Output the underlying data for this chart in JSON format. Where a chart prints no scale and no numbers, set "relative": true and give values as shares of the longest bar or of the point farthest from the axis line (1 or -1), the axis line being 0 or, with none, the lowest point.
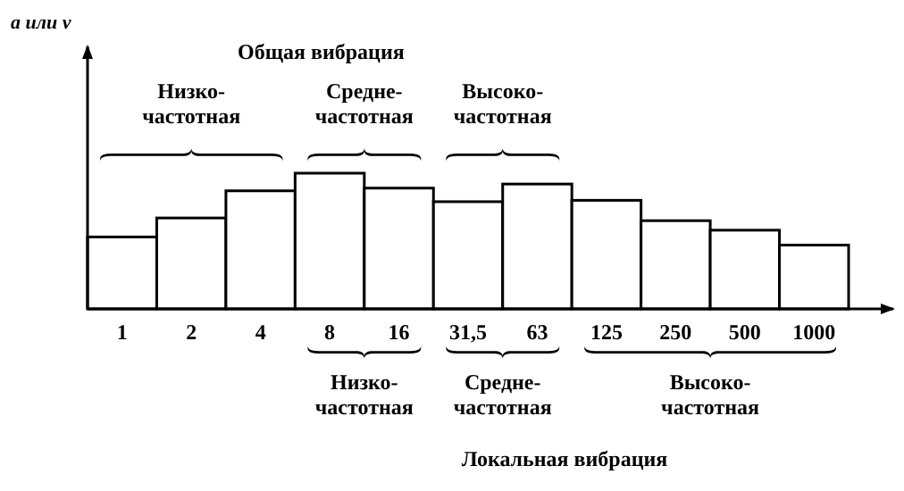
{
  "chart_data": {
    "type": "bar",
    "title": "Общая вибрация",
    "xlabel": "Локальная вибрация",
    "categories": [
      "1",
      "2",
      "4",
      "8",
      "16",
      "31,5",
      "63",
      "125",
      "250",
      "500",
      "1000"
    ],
    "values": [
      0.53,
      0.67,
      0.87,
      1,
      0.89,
      0.79,
      0.92,
      0.8,
      0.65,
      0.58,
      0.47
    ],
    "relative": true,
    "color": "#ffffff",
    "annotations": [
      "Низко-\nчастотная",
      "Средне-\nчастотная",
      "Высоко-\nчастотная",
      "Низко-\nчастотная",
      "Средне-\nчастотная",
      "Высоко-\nчастотная",
      "a или v"
    ]
  }
}
